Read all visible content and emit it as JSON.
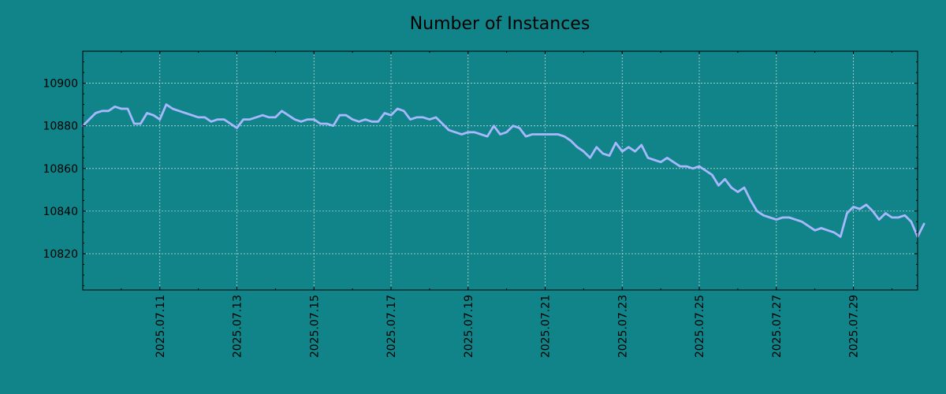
{
  "chart_data": {
    "type": "line",
    "title": "Number of Instances",
    "xlabel": "",
    "ylabel": "",
    "x_start": "2025-07-09",
    "x_step_hours": 4,
    "xlim": [
      "2025-07-09",
      "2025-07-30 16:00"
    ],
    "ylim": [
      10803,
      10915
    ],
    "yticks": [
      10820,
      10840,
      10860,
      10880,
      10900
    ],
    "xticks": [
      "2025.07.11",
      "2025.07.13",
      "2025.07.15",
      "2025.07.17",
      "2025.07.19",
      "2025.07.21",
      "2025.07.23",
      "2025.07.25",
      "2025.07.27",
      "2025.07.29"
    ],
    "grid": true,
    "colors": {
      "background": "#108488",
      "line": "#a8b8ff"
    },
    "series": [
      {
        "name": "",
        "values": [
          10880,
          10883,
          10886,
          10887,
          10887,
          10889,
          10888,
          10888,
          10881,
          10881,
          10886,
          10885,
          10883,
          10890,
          10888,
          10887,
          10886,
          10885,
          10884,
          10884,
          10882,
          10883,
          10883,
          10881,
          10879,
          10883,
          10883,
          10884,
          10885,
          10884,
          10884,
          10887,
          10885,
          10883,
          10882,
          10883,
          10883,
          10881,
          10881,
          10880,
          10885,
          10885,
          10883,
          10882,
          10883,
          10882,
          10882,
          10886,
          10885,
          10888,
          10887,
          10883,
          10884,
          10884,
          10883,
          10884,
          10881,
          10878,
          10877,
          10876,
          10877,
          10877,
          10876,
          10875,
          10880,
          10876,
          10877,
          10880,
          10879,
          10875,
          10876,
          10876,
          10876,
          10876,
          10876,
          10875,
          10873,
          10870,
          10868,
          10865,
          10870,
          10867,
          10866,
          10872,
          10868,
          10870,
          10868,
          10871,
          10865,
          10864,
          10863,
          10865,
          10863,
          10861,
          10861,
          10860,
          10861,
          10859,
          10857,
          10852,
          10855,
          10851,
          10849,
          10851,
          10845,
          10840,
          10838,
          10837,
          10836,
          10837,
          10837,
          10836,
          10835,
          10833,
          10831,
          10832,
          10831,
          10830,
          10828,
          10839,
          10842,
          10841,
          10843,
          10840,
          10836,
          10839,
          10837,
          10837,
          10838,
          10835,
          10828,
          10834
        ]
      }
    ]
  }
}
